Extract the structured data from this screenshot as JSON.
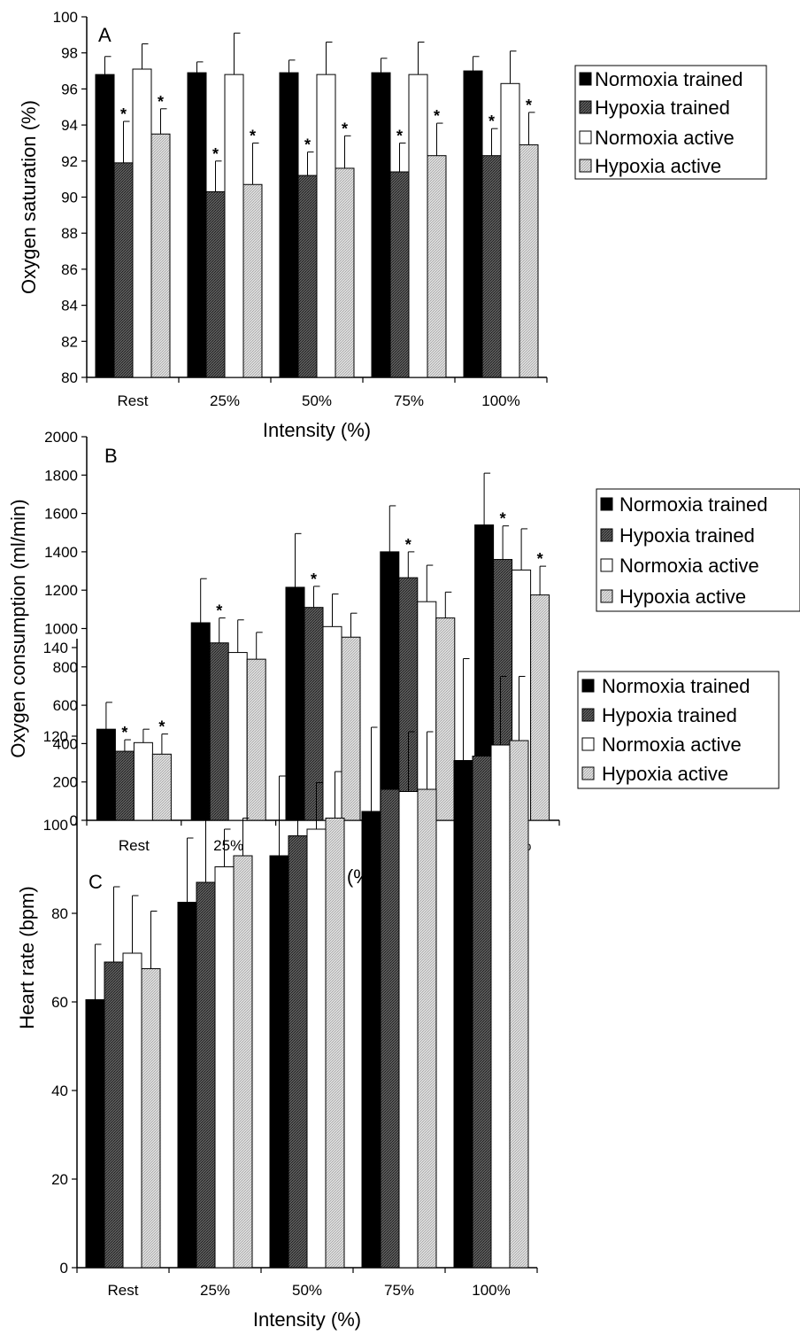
{
  "colors": {
    "normoxia_trained": "#000000",
    "hypoxia_trained": "#4a4a4a",
    "normoxia_active": "#ffffff",
    "hypoxia_active": "#c8c8c8"
  },
  "chart_data": [
    {
      "type": "bar",
      "panel": "A",
      "categories": [
        "Rest",
        "25%",
        "50%",
        "75%",
        "100%"
      ],
      "xlabel": "Intensity (%)",
      "ylabel": "Oxygen saturation (%)",
      "ylim": [
        80,
        100
      ],
      "yticks": [
        80,
        82,
        84,
        86,
        88,
        90,
        92,
        94,
        96,
        98,
        100
      ],
      "legend": "right",
      "series": [
        {
          "name": "Normoxia trained",
          "values": [
            96.8,
            96.9,
            96.9,
            96.9,
            97.0
          ],
          "errors": [
            1.0,
            0.6,
            0.7,
            0.8,
            0.8
          ],
          "significant": [
            false,
            false,
            false,
            false,
            false
          ]
        },
        {
          "name": "Hypoxia trained",
          "values": [
            91.9,
            90.3,
            91.2,
            91.4,
            92.3
          ],
          "errors": [
            2.3,
            1.7,
            1.3,
            1.6,
            1.5
          ],
          "significant": [
            true,
            true,
            true,
            true,
            true
          ]
        },
        {
          "name": "Normoxia active",
          "values": [
            97.1,
            96.8,
            96.8,
            96.8,
            96.3
          ],
          "errors": [
            1.4,
            2.3,
            1.8,
            1.8,
            1.8
          ],
          "significant": [
            false,
            false,
            false,
            false,
            false
          ]
        },
        {
          "name": "Hypoxia active",
          "values": [
            93.5,
            90.7,
            91.6,
            92.3,
            92.9
          ],
          "errors": [
            1.4,
            2.3,
            1.8,
            1.8,
            1.8
          ],
          "significant": [
            true,
            true,
            true,
            true,
            true
          ]
        }
      ]
    },
    {
      "type": "bar",
      "panel": "B",
      "categories": [
        "Rest",
        "25%",
        "50%",
        "75%",
        "100%"
      ],
      "xlabel": "Intensity (%)",
      "ylabel": "Oxygen consumption (ml/min)",
      "ylim": [
        0,
        2000
      ],
      "yticks": [
        0,
        200,
        400,
        600,
        800,
        1000,
        1200,
        1400,
        1600,
        1800,
        2000
      ],
      "legend": "right",
      "series": [
        {
          "name": "Normoxia trained",
          "values": [
            475,
            1030,
            1215,
            1400,
            1540
          ],
          "errors": [
            140,
            230,
            280,
            240,
            270
          ],
          "significant": [
            false,
            false,
            false,
            false,
            false
          ]
        },
        {
          "name": "Hypoxia trained",
          "values": [
            360,
            925,
            1110,
            1265,
            1360
          ],
          "errors": [
            60,
            130,
            110,
            135,
            175
          ],
          "significant": [
            true,
            true,
            true,
            true,
            true
          ]
        },
        {
          "name": "Normoxia active",
          "values": [
            405,
            875,
            1010,
            1140,
            1305
          ],
          "errors": [
            70,
            170,
            170,
            190,
            215
          ],
          "significant": [
            false,
            false,
            false,
            false,
            false
          ]
        },
        {
          "name": "Hypoxia active",
          "values": [
            345,
            840,
            955,
            1055,
            1175
          ],
          "errors": [
            105,
            140,
            125,
            135,
            150
          ],
          "significant": [
            true,
            false,
            false,
            false,
            true
          ]
        }
      ]
    },
    {
      "type": "bar",
      "panel": "C",
      "categories": [
        "Rest",
        "25%",
        "50%",
        "75%",
        "100%"
      ],
      "xlabel": "Intensity (%)",
      "ylabel": "Heart rate (bpm)",
      "ylim": [
        0,
        150
      ],
      "yticks": [
        0,
        20,
        40,
        60,
        80,
        100,
        120,
        140
      ],
      "legend": "right",
      "series": [
        {
          "name": "Normoxia trained",
          "values": [
            60.5,
            82.5,
            93.0,
            103.0,
            114.5
          ],
          "errors": [
            12.5,
            14.5,
            18.0,
            19.0,
            23.0
          ],
          "significant": [
            false,
            false,
            false,
            false,
            false
          ]
        },
        {
          "name": "Hypoxia trained",
          "values": [
            69.0,
            87.0,
            97.5,
            108.0,
            115.5
          ],
          "errors": [
            17.0,
            14.0,
            16.0,
            18.5,
            19.0
          ],
          "significant": [
            false,
            false,
            false,
            false,
            false
          ]
        },
        {
          "name": "Normoxia active",
          "values": [
            71.0,
            90.5,
            99.0,
            107.5,
            118.0
          ],
          "errors": [
            13.0,
            8.5,
            10.5,
            13.5,
            15.5
          ],
          "significant": [
            false,
            false,
            false,
            false,
            false
          ]
        },
        {
          "name": "Hypoxia active",
          "values": [
            67.5,
            93.0,
            101.5,
            108.0,
            119.0
          ],
          "errors": [
            13.0,
            8.5,
            10.5,
            13.0,
            14.5
          ],
          "significant": [
            false,
            false,
            false,
            false,
            false
          ]
        }
      ]
    }
  ]
}
